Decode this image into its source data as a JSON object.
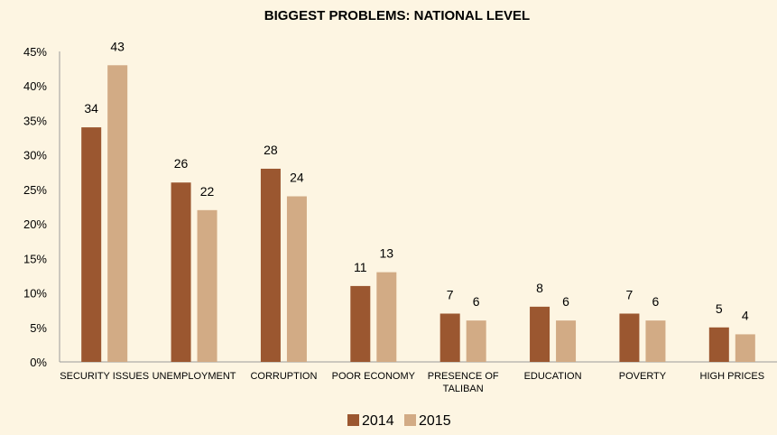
{
  "chart_data": {
    "type": "bar",
    "title": "BIGGEST PROBLEMS: NATIONAL LEVEL",
    "categories": [
      [
        "SECURITY ISSUES"
      ],
      [
        "UNEMPLOYMENT"
      ],
      [
        "CORRUPTION"
      ],
      [
        "POOR ECONOMY"
      ],
      [
        "PRESENCE OF",
        "TALIBAN"
      ],
      [
        "EDUCATION"
      ],
      [
        "POVERTY"
      ],
      [
        "HIGH PRICES"
      ]
    ],
    "series": [
      {
        "name": "2014",
        "color": "#9b5730",
        "values": [
          34,
          26,
          28,
          11,
          7,
          8,
          7,
          5
        ]
      },
      {
        "name": "2015",
        "color": "#d2ab85",
        "values": [
          43,
          22,
          24,
          13,
          6,
          6,
          6,
          4
        ]
      }
    ],
    "ylim": [
      0,
      45
    ],
    "ytick_step": 5,
    "ytick_suffix": "%",
    "xlabel": "",
    "ylabel": "",
    "legend": "bottom-center",
    "grid": false
  }
}
